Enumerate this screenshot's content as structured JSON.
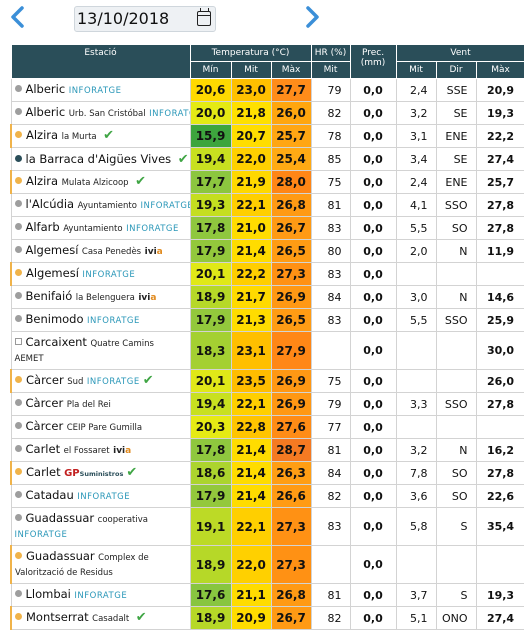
{
  "date": "13/10/2018",
  "icons": {
    "prev": "chevron-left-icon",
    "next": "chevron-right-icon",
    "calendar": "calendar-icon"
  },
  "colors": {
    "header": "#2a4e59",
    "nav": "#3b8fd8",
    "accent": "#2a97b8"
  },
  "header": {
    "estacio": "Estació",
    "temp": "Temperatura (°C)",
    "hr": "HR (%)",
    "prec": "Prec. (mm)",
    "vent": "Vent",
    "min": "Mín",
    "mit": "Mit",
    "max": "Màx",
    "hr_mit": "Mit",
    "v_mit": "Mit",
    "dir": "Dir",
    "v_max": "Màx"
  },
  "rows": [
    {
      "name": "Alberic",
      "sub": "",
      "tag": "INFORATGE",
      "dot": "#9e9e9e",
      "min": "20,6",
      "mit": "23,0",
      "max": "27,7",
      "hr": "79",
      "prec": "0,0",
      "vmit": "2,4",
      "dir": "SSE",
      "vmax": "20,9",
      "cmin": "#ffd900",
      "cmit": "#ffc000",
      "cmax": "#ff8c1a"
    },
    {
      "name": "Alberic",
      "sub": "Urb. San Cristóbal",
      "tag": "INFORATGE",
      "dot": "#9e9e9e",
      "min": "20,0",
      "mit": "21,8",
      "max": "26,0",
      "hr": "82",
      "prec": "0,0",
      "vmit": "3,2",
      "dir": "SE",
      "vmax": "19,3",
      "cmin": "#e4ea14",
      "cmit": "#ffe000",
      "cmax": "#ffa60f"
    },
    {
      "name": "Alzira",
      "sub": "la Murta",
      "tag": "",
      "dot": "#f0b34a",
      "check": "✔",
      "min": "15,9",
      "mit": "20,7",
      "max": "25,7",
      "hr": "78",
      "prec": "0,0",
      "vmit": "3,1",
      "dir": "ENE",
      "vmax": "22,2",
      "cmin": "#3da53d",
      "cmit": "#ffdd00",
      "cmax": "#ffa613"
    },
    {
      "name": "la Barraca d'Aigües Vives",
      "sub": "",
      "tag": "",
      "dot": "#2a4e59",
      "check": "✔",
      "min": "19,4",
      "mit": "22,0",
      "max": "25,4",
      "hr": "85",
      "prec": "0,0",
      "vmit": "3,4",
      "dir": "SE",
      "vmax": "27,4",
      "cmin": "#c8e020",
      "cmit": "#ffd000",
      "cmax": "#ffaa14"
    },
    {
      "name": "Alzira",
      "sub": "Mulata Alzicoop",
      "tag": "",
      "dot": "#f0b34a",
      "check": "✔",
      "min": "17,7",
      "mit": "21,9",
      "max": "28,0",
      "hr": "75",
      "prec": "0,0",
      "vmit": "2,4",
      "dir": "ENE",
      "vmax": "25,7",
      "cmin": "#8cc63f",
      "cmit": "#ffd800",
      "cmax": "#ff8616"
    },
    {
      "name": "l'Alcúdia",
      "sub": "Ayuntamiento",
      "tag": "INFORATGE",
      "dot": "#9e9e9e",
      "min": "19,3",
      "mit": "22,1",
      "max": "26,8",
      "hr": "81",
      "prec": "0,0",
      "vmit": "4,1",
      "dir": "SSO",
      "vmax": "27,8",
      "cmin": "#c4de20",
      "cmit": "#ffcf00",
      "cmax": "#ff9a14"
    },
    {
      "name": "Alfarb",
      "sub": "Ayuntamiento",
      "tag": "INFORATGE",
      "dot": "#9e9e9e",
      "min": "17,8",
      "mit": "21,0",
      "max": "26,7",
      "hr": "83",
      "prec": "0,0",
      "vmit": "5,5",
      "dir": "SO",
      "vmax": "27,8",
      "cmin": "#8fc73e",
      "cmit": "#ffdc00",
      "cmax": "#ff9a14"
    },
    {
      "name": "Algemesí",
      "sub": "Casa Penedès",
      "tag": "",
      "ivia": true,
      "dot": "#9e9e9e",
      "min": "17,9",
      "mit": "21,4",
      "max": "26,5",
      "hr": "80",
      "prec": "0,0",
      "vmit": "2,0",
      "dir": "N",
      "vmax": "11,9",
      "cmin": "#93c83c",
      "cmit": "#ffdc00",
      "cmax": "#ff9c14"
    },
    {
      "name": "Algemesí",
      "sub": "",
      "tag": "INFORATGE",
      "dot": "#f0b34a",
      "min": "20,1",
      "mit": "22,2",
      "max": "27,3",
      "hr": "83",
      "prec": "0,0",
      "vmit": "",
      "dir": "",
      "vmax": "",
      "cmin": "#e0e818",
      "cmit": "#ffce00",
      "cmax": "#ff9114"
    },
    {
      "name": "Benifaió",
      "sub": "la Belenguera",
      "tag": "",
      "ivia": true,
      "dot": "#9e9e9e",
      "min": "18,9",
      "mit": "21,7",
      "max": "26,9",
      "hr": "84",
      "prec": "0,0",
      "vmit": "3,0",
      "dir": "N",
      "vmax": "14,6",
      "cmin": "#b6d828",
      "cmit": "#ffda00",
      "cmax": "#ff9814"
    },
    {
      "name": "Benimodo",
      "sub": "",
      "tag": "INFORATGE",
      "dot": "#9e9e9e",
      "min": "17,9",
      "mit": "21,3",
      "max": "26,5",
      "hr": "83",
      "prec": "0,0",
      "vmit": "5,5",
      "dir": "SSO",
      "vmax": "25,9",
      "cmin": "#93c83c",
      "cmit": "#ffdc00",
      "cmax": "#ff9c14"
    },
    {
      "name": "Carcaixent",
      "sub": "Quatre Camins",
      "sub2": "AEMET",
      "tag": "",
      "square": true,
      "dot": "",
      "min": "18,3",
      "mit": "23,1",
      "max": "27,9",
      "hr": "",
      "prec": "0,0",
      "vmit": "",
      "dir": "",
      "vmax": "30,0",
      "cmin": "#a4d032",
      "cmit": "#ffbf00",
      "cmax": "#ff8716",
      "tall": true
    },
    {
      "name": "Càrcer",
      "sub": "Sud",
      "tag": "INFORATGE",
      "dot": "#f0b34a",
      "check": "✔",
      "min": "20,1",
      "mit": "23,5",
      "max": "26,9",
      "hr": "75",
      "prec": "0,0",
      "vmit": "",
      "dir": "",
      "vmax": "26,0",
      "cmin": "#e0e818",
      "cmit": "#ffbd00",
      "cmax": "#ff9814"
    },
    {
      "name": "Càrcer",
      "sub": "Pla del Rei",
      "tag": "",
      "dot": "#9e9e9e",
      "min": "19,4",
      "mit": "22,1",
      "max": "26,9",
      "hr": "79",
      "prec": "0,0",
      "vmit": "3,3",
      "dir": "SSO",
      "vmax": "27,8",
      "cmin": "#c8e020",
      "cmit": "#ffcf00",
      "cmax": "#ff9814"
    },
    {
      "name": "Càrcer",
      "sub": "CEIP Pare Gumilla",
      "tag": "",
      "dot": "#9e9e9e",
      "min": "20,3",
      "mit": "22,8",
      "max": "27,6",
      "hr": "77",
      "prec": "0,0",
      "vmit": "",
      "dir": "",
      "vmax": "",
      "cmin": "#e6ea14",
      "cmit": "#ffc400",
      "cmax": "#ff8c16"
    },
    {
      "name": "Carlet",
      "sub": "el Fossaret",
      "tag": "",
      "ivia": true,
      "dot": "#9e9e9e",
      "min": "17,8",
      "mit": "21,4",
      "max": "28,7",
      "hr": "81",
      "prec": "0,0",
      "vmit": "3,2",
      "dir": "N",
      "vmax": "16,2",
      "cmin": "#8fc73e",
      "cmit": "#ffdc00",
      "cmax": "#f57a22"
    },
    {
      "name": "Carlet",
      "sub": "",
      "tag": "",
      "gp": true,
      "dot": "#f0b34a",
      "check": "✔",
      "min": "18,6",
      "mit": "21,4",
      "max": "26,3",
      "hr": "84",
      "prec": "0,0",
      "vmit": "7,8",
      "dir": "SO",
      "vmax": "27,8",
      "cmin": "#acd42e",
      "cmit": "#ffdc00",
      "cmax": "#ff9e14"
    },
    {
      "name": "Catadau",
      "sub": "",
      "tag": "INFORATGE",
      "dot": "#9e9e9e",
      "min": "17,9",
      "mit": "21,4",
      "max": "26,6",
      "hr": "82",
      "prec": "0,0",
      "vmit": "3,6",
      "dir": "SO",
      "vmax": "22,6",
      "cmin": "#93c83c",
      "cmit": "#ffdc00",
      "cmax": "#ff9b14"
    },
    {
      "name": "Guadassuar",
      "sub": "cooperativa",
      "tag2": "INFORATGE",
      "dot": "#9e9e9e",
      "min": "19,1",
      "mit": "22,1",
      "max": "27,3",
      "hr": "83",
      "prec": "0,0",
      "vmit": "5,8",
      "dir": "S",
      "vmax": "35,4",
      "cmin": "#bcda26",
      "cmit": "#ffcf00",
      "cmax": "#ff9114",
      "tall": true
    },
    {
      "name": "Guadassuar",
      "sub": "Complex de",
      "sub2": "Valorització de Residus",
      "tag": "",
      "dot": "#f0b34a",
      "min": "18,9",
      "mit": "22,0",
      "max": "27,3",
      "hr": "",
      "prec": "0,0",
      "vmit": "",
      "dir": "",
      "vmax": "",
      "cmin": "#b6d828",
      "cmit": "#ffd000",
      "cmax": "#ff9114",
      "tall": true
    },
    {
      "name": "Llombai",
      "sub": "",
      "tag": "INFORATGE",
      "dot": "#9e9e9e",
      "min": "17,6",
      "mit": "21,1",
      "max": "26,8",
      "hr": "81",
      "prec": "0,0",
      "vmit": "3,7",
      "dir": "S",
      "vmax": "19,3",
      "cmin": "#88c540",
      "cmit": "#ffdc00",
      "cmax": "#ff9a14"
    },
    {
      "name": "Montserrat",
      "sub": "Casadalt",
      "tag": "",
      "dot": "#f0b34a",
      "check": "✔",
      "min": "18,9",
      "mit": "20,9",
      "max": "26,7",
      "hr": "82",
      "prec": "0,0",
      "vmit": "5,1",
      "dir": "ONO",
      "vmax": "27,4",
      "cmin": "#b6d828",
      "cmit": "#ffdc00",
      "cmax": "#ff9a14"
    }
  ]
}
